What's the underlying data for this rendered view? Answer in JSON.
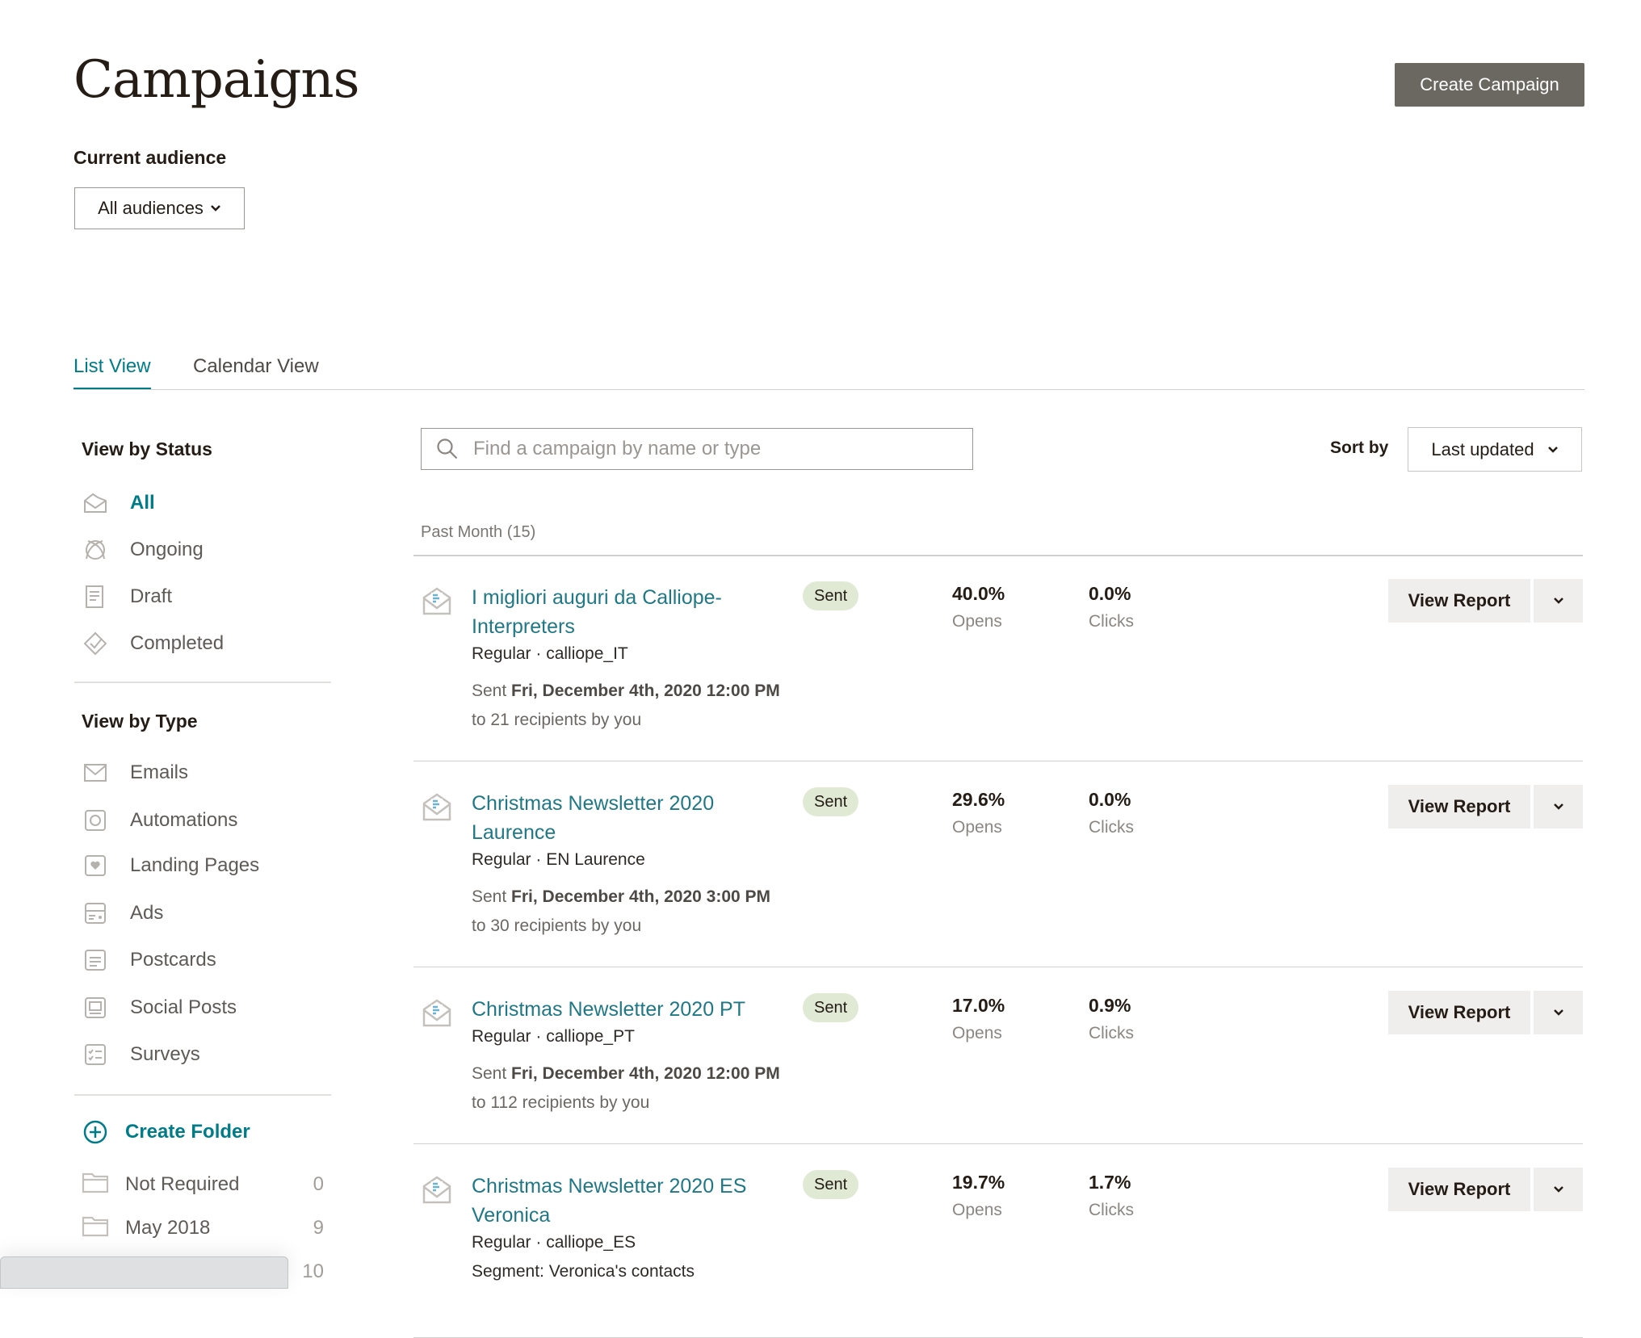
{
  "header": {
    "title": "Campaigns",
    "create_button": "Create Campaign",
    "audience_label": "Current audience",
    "audience_value": "All audiences"
  },
  "tabs": [
    {
      "label": "List View",
      "active": true
    },
    {
      "label": "Calendar View",
      "active": false
    }
  ],
  "sidebar": {
    "status_heading": "View by Status",
    "status_items": [
      {
        "label": "All",
        "icon": "all-campaigns-icon",
        "active": true
      },
      {
        "label": "Ongoing",
        "icon": "ongoing-icon"
      },
      {
        "label": "Draft",
        "icon": "draft-icon"
      },
      {
        "label": "Completed",
        "icon": "completed-icon"
      }
    ],
    "type_heading": "View by Type",
    "type_items": [
      {
        "label": "Emails",
        "icon": "email-icon"
      },
      {
        "label": "Automations",
        "icon": "automation-icon"
      },
      {
        "label": "Landing Pages",
        "icon": "landing-page-icon"
      },
      {
        "label": "Ads",
        "icon": "ads-icon"
      },
      {
        "label": "Postcards",
        "icon": "postcard-icon"
      },
      {
        "label": "Social Posts",
        "icon": "social-post-icon"
      },
      {
        "label": "Surveys",
        "icon": "survey-icon"
      }
    ],
    "create_folder": "Create Folder",
    "folders": [
      {
        "label": "Not Required",
        "count": "0"
      },
      {
        "label": "May 2018",
        "count": "9"
      },
      {
        "label": "",
        "count": "10"
      }
    ]
  },
  "search": {
    "placeholder": "Find a campaign by name or type",
    "value": ""
  },
  "sort": {
    "label": "Sort by",
    "value": "Last updated"
  },
  "group": {
    "label": "Past Month (15)"
  },
  "colors": {
    "accent": "#007c89",
    "badge_bg": "#dfe9d3",
    "primary_button": "#6b6761"
  },
  "campaigns": [
    {
      "name": "I migliori auguri da Calliope-Interpreters",
      "status": "Sent",
      "meta": "Regular · calliope_IT",
      "sent_prefix": "Sent",
      "sent_date": "Fri, December 4th, 2020 12:00 PM",
      "recipients": "to 21 recipients by you",
      "opens": "40.0%",
      "opens_label": "Opens",
      "clicks": "0.0%",
      "clicks_label": "Clicks",
      "action": "View Report"
    },
    {
      "name": "Christmas Newsletter 2020 Laurence",
      "status": "Sent",
      "meta": "Regular · EN Laurence",
      "sent_prefix": "Sent",
      "sent_date": "Fri, December 4th, 2020 3:00 PM",
      "recipients": "to 30 recipients by you",
      "opens": "29.6%",
      "opens_label": "Opens",
      "clicks": "0.0%",
      "clicks_label": "Clicks",
      "action": "View Report"
    },
    {
      "name": "Christmas Newsletter 2020 PT",
      "status": "Sent",
      "meta": "Regular · calliope_PT",
      "sent_prefix": "Sent",
      "sent_date": "Fri, December 4th, 2020 12:00 PM",
      "recipients": "to 112 recipients by you",
      "opens": "17.0%",
      "opens_label": "Opens",
      "clicks": "0.9%",
      "clicks_label": "Clicks",
      "action": "View Report"
    },
    {
      "name": "Christmas Newsletter 2020 ES Veronica",
      "status": "Sent",
      "meta": "Regular · calliope_ES",
      "segment": "Segment: Veronica's contacts",
      "opens": "19.7%",
      "opens_label": "Opens",
      "clicks": "1.7%",
      "clicks_label": "Clicks",
      "action": "View Report"
    }
  ]
}
